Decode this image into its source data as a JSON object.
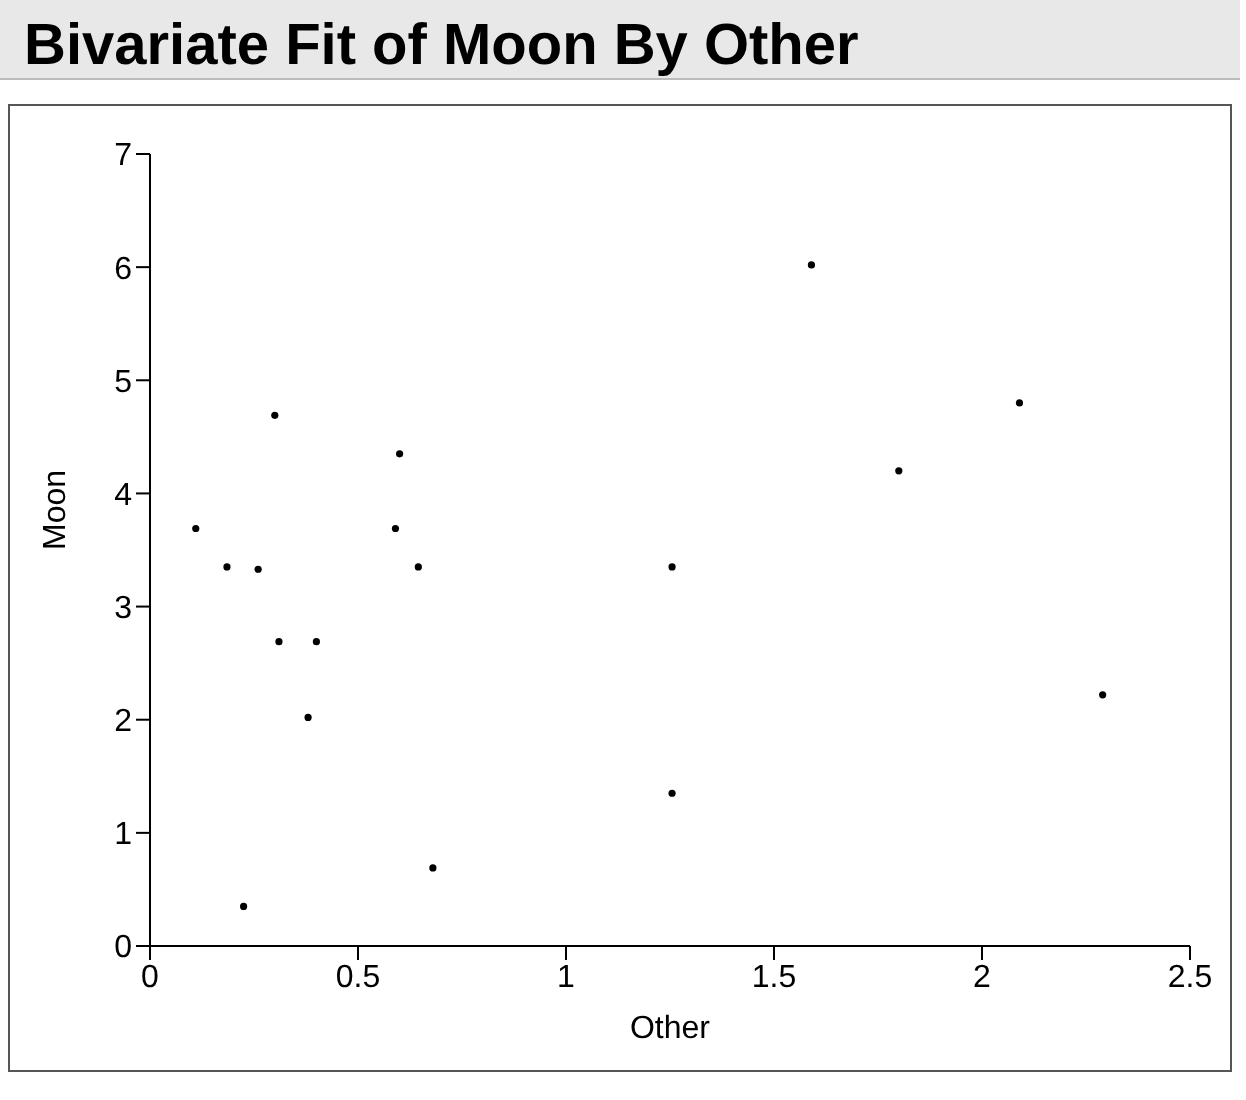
{
  "chart_data": {
    "type": "scatter",
    "title": "Bivariate Fit of Moon By Other",
    "xlabel": "Other",
    "ylabel": "Moon",
    "x": [
      0.11,
      0.185,
      0.26,
      0.3,
      0.31,
      0.4,
      0.38,
      0.225,
      0.6,
      0.59,
      0.645,
      0.68,
      1.255,
      1.255,
      1.59,
      1.8,
      2.09,
      2.29
    ],
    "values": [
      3.69,
      3.35,
      3.33,
      4.69,
      2.69,
      2.69,
      2.02,
      0.35,
      4.35,
      3.69,
      3.35,
      0.69,
      3.35,
      1.35,
      6.02,
      4.2,
      4.8,
      2.22
    ],
    "color": "#000000",
    "marker": "circle",
    "grid": false,
    "legend": false,
    "xlim": [
      0,
      2.5
    ],
    "xticks": [
      0,
      0.5,
      1,
      1.5,
      2,
      2.5
    ],
    "ylim": [
      0,
      7
    ],
    "yticks": [
      0,
      1,
      2,
      3,
      4,
      5,
      6,
      7
    ]
  }
}
